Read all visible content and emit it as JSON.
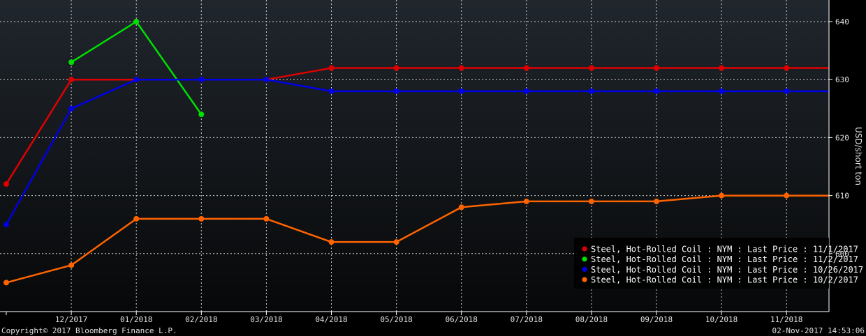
{
  "chart_data": {
    "type": "line",
    "ylabel": "USD/short ton",
    "ylim": [
      590,
      643
    ],
    "yticks": [
      600,
      610,
      620,
      630,
      640
    ],
    "x_tick_labels": [
      "12/2017",
      "01/2018",
      "02/2018",
      "03/2018",
      "04/2018",
      "05/2018",
      "06/2018",
      "07/2018",
      "08/2018",
      "09/2018",
      "10/2018",
      "11/2018"
    ],
    "x_range": [
      0,
      12.88
    ],
    "grid": true,
    "legend_position": "bottom-right",
    "series": [
      {
        "name": "Steel, Hot-Rolled Coil : NYM : Last Price : 11/1/2017",
        "color": "#e00000",
        "x": [
          0,
          1,
          2,
          3,
          4,
          5,
          6,
          7,
          8,
          9,
          10,
          11,
          12
        ],
        "values": [
          612,
          630,
          630,
          630,
          630,
          632,
          632,
          632,
          632,
          632,
          632,
          632,
          632
        ],
        "extend_to_edge": true
      },
      {
        "name": "Steel, Hot-Rolled Coil : NYM : Last Price : 11/2/2017",
        "color": "#00e000",
        "x": [
          1,
          2,
          3
        ],
        "values": [
          633,
          640,
          624
        ],
        "extend_to_edge": false
      },
      {
        "name": "Steel, Hot-Rolled Coil : NYM : Last Price : 10/26/2017",
        "color": "#0000e6",
        "x": [
          0,
          1,
          2,
          3,
          4,
          5,
          6,
          7,
          8,
          9,
          10,
          11,
          12
        ],
        "values": [
          605,
          625,
          630,
          630,
          630,
          628,
          628,
          628,
          628,
          628,
          628,
          628,
          628
        ],
        "extend_to_edge": true
      },
      {
        "name": "Steel, Hot-Rolled Coil : NYM : Last Price : 10/2/2017",
        "color": "#ff6400",
        "x": [
          0,
          1,
          2,
          3,
          4,
          5,
          6,
          7,
          8,
          9,
          10,
          11,
          12
        ],
        "values": [
          595,
          598,
          606,
          606,
          606,
          602,
          602,
          608,
          609,
          609,
          609,
          610,
          610
        ],
        "extend_to_edge": true
      }
    ]
  },
  "footer": {
    "copyright": "Copyright© 2017 Bloomberg Finance L.P.",
    "timestamp": "02-Nov-2017 14:53:06"
  },
  "colors": {
    "background": "#000000",
    "plot_top": "#20262d",
    "plot_bottom": "#070809",
    "grid": "#cfcfcf"
  }
}
